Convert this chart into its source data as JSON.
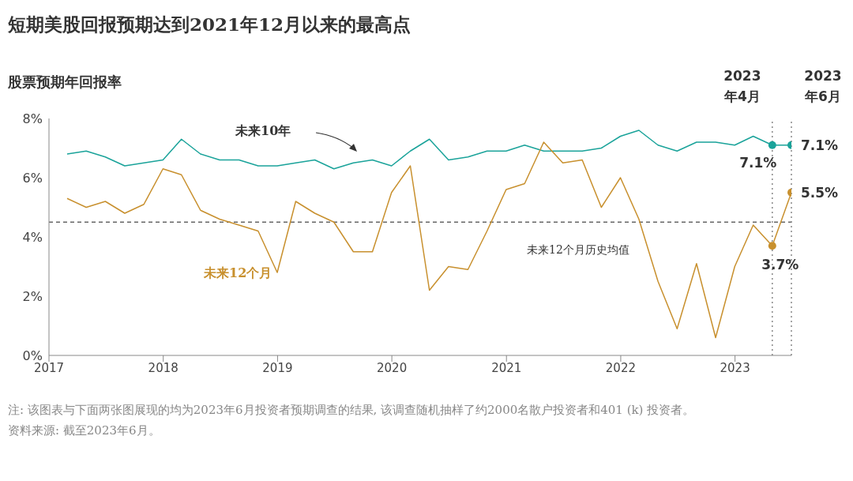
{
  "chart_data": {
    "type": "line",
    "title": "短期美股回报预期达到2021年12月以来的最高点",
    "ylabel": "股票预期年回报率",
    "x": [
      "2017-02-28",
      "2017-04-30",
      "2017-06-30",
      "2017-08-31",
      "2017-10-31",
      "2017-12-31",
      "2018-02-28",
      "2018-04-30",
      "2018-06-30",
      "2018-08-31",
      "2018-10-31",
      "2018-12-31",
      "2019-02-28",
      "2019-04-30",
      "2019-06-30",
      "2019-08-31",
      "2019-10-31",
      "2019-12-31",
      "2020-02-29",
      "2020-04-30",
      "2020-06-30",
      "2020-08-31",
      "2020-10-31",
      "2020-12-31",
      "2021-02-28",
      "2021-04-30",
      "2021-06-30",
      "2021-08-31",
      "2021-10-31",
      "2021-12-31",
      "2022-02-28",
      "2022-04-30",
      "2022-06-30",
      "2022-08-31",
      "2022-10-31",
      "2022-12-31",
      "2023-02-28",
      "2023-04-30",
      "2023-06-30"
    ],
    "series": [
      {
        "name": "未来10年",
        "color": "#1aa39a",
        "values": [
          6.8,
          6.9,
          6.7,
          6.4,
          6.5,
          6.6,
          7.3,
          6.8,
          6.6,
          6.6,
          6.4,
          6.4,
          6.5,
          6.6,
          6.3,
          6.5,
          6.6,
          6.4,
          6.9,
          7.3,
          6.6,
          6.7,
          6.9,
          6.9,
          7.1,
          6.9,
          6.9,
          6.9,
          7.0,
          7.4,
          7.6,
          7.1,
          6.9,
          7.2,
          7.2,
          7.1,
          7.4,
          7.1,
          7.1
        ],
        "value_labels": [
          null,
          null,
          null,
          null,
          null,
          null,
          null,
          null,
          null,
          null,
          null,
          null,
          null,
          null,
          null,
          null,
          null,
          null,
          null,
          null,
          null,
          null,
          null,
          null,
          null,
          null,
          null,
          null,
          null,
          null,
          null,
          null,
          null,
          null,
          null,
          null,
          null,
          "7.1%",
          "7.1%"
        ]
      },
      {
        "name": "未来12个月",
        "color": "#c8902e",
        "values": [
          5.3,
          5.0,
          5.2,
          4.8,
          5.1,
          6.3,
          6.1,
          4.9,
          4.6,
          4.4,
          4.2,
          2.8,
          5.2,
          4.8,
          4.5,
          3.5,
          3.5,
          5.5,
          6.4,
          2.2,
          3.0,
          2.9,
          4.2,
          5.6,
          5.8,
          7.2,
          6.5,
          6.6,
          5.0,
          6.0,
          4.6,
          2.5,
          0.9,
          3.1,
          0.6,
          3.0,
          4.4,
          3.7,
          5.5
        ],
        "value_labels": [
          null,
          null,
          null,
          null,
          null,
          null,
          null,
          null,
          null,
          null,
          null,
          null,
          null,
          null,
          null,
          null,
          null,
          null,
          null,
          null,
          null,
          null,
          null,
          null,
          null,
          null,
          null,
          null,
          null,
          null,
          null,
          null,
          null,
          null,
          null,
          null,
          null,
          "3.7%",
          "5.5%"
        ]
      }
    ],
    "xlim": [
      "2017-01-01",
      "2023-06-30"
    ],
    "xticks": [
      "2017",
      "2018",
      "2019",
      "2020",
      "2021",
      "2022",
      "2023"
    ],
    "ylim": [
      0,
      8
    ],
    "yticks": [
      {
        "value": 0,
        "label": "0%"
      },
      {
        "value": 2,
        "label": "2%"
      },
      {
        "value": 4,
        "label": "4%"
      },
      {
        "value": 6,
        "label": "6%"
      },
      {
        "value": 8,
        "label": "8%"
      }
    ],
    "ref_lines": [
      {
        "axis": "y",
        "value": 4.5,
        "label": "未来12个月历史均值",
        "color": "#666666",
        "line_style": "dashed"
      },
      {
        "axis": "x",
        "value": "2023-04-30",
        "label": "2023年4月",
        "color": "#888888",
        "line_style": "dotted"
      },
      {
        "axis": "x",
        "value": "2023-06-30",
        "label": "2023年6月",
        "color": "#888888",
        "line_style": "dotted"
      }
    ],
    "annotations": [
      "注: 该图表与下面两张图展现的均为2023年6月投资者预期调查的结果, 该调查随机抽样了约2000名散户投资者和401 (k) 投资者。",
      "资料来源: 截至2023年6月。"
    ]
  }
}
